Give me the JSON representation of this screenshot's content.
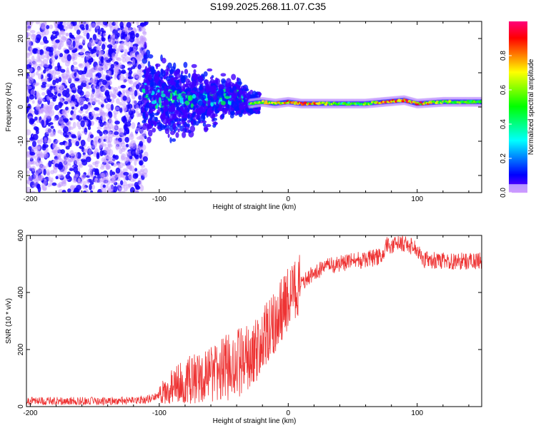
{
  "chart_data": [
    {
      "type": "heatmap",
      "title": "S199.2025.268.11.07.C35",
      "xlabel": "Height of straight line (km)",
      "ylabel": "Frequency (Hz)",
      "xlim": [
        -203,
        150
      ],
      "ylim": [
        -25,
        25
      ],
      "xticks": [
        -200,
        -100,
        0,
        100
      ],
      "yticks": [
        -20,
        -10,
        0,
        10,
        20
      ],
      "colorbar": {
        "label": "Normalized spectral amplitude",
        "range": [
          0,
          1
        ],
        "ticks": [
          "0.0",
          "0.2",
          "0.4",
          "0.6",
          "0.8"
        ]
      },
      "ridge": {
        "x": [
          -110,
          -90,
          -70,
          -50,
          -40,
          -30,
          -20,
          -10,
          0,
          10,
          20,
          40,
          60,
          75,
          90,
          100,
          120,
          150
        ],
        "freq_hz": [
          4,
          2,
          2,
          3,
          3,
          1,
          1.5,
          1,
          1.5,
          1,
          1,
          1,
          1,
          1.5,
          2,
          1,
          1.5,
          1.5
        ],
        "amplitude": [
          0.15,
          0.3,
          0.35,
          0.4,
          0.4,
          0.6,
          0.7,
          0.75,
          0.85,
          0.9,
          0.85,
          0.55,
          0.6,
          0.95,
          0.9,
          0.9,
          0.7,
          0.55
        ]
      },
      "noise_region_x": [
        -203,
        -110
      ]
    },
    {
      "type": "line",
      "xlabel": "Height of straight line (km)",
      "ylabel": "SNR (10 * v/v)",
      "xlim": [
        -203,
        150
      ],
      "ylim": [
        0,
        600
      ],
      "xticks": [
        -200,
        -100,
        0,
        100
      ],
      "yticks": [
        0,
        200,
        400,
        600
      ],
      "color": "#ee3333",
      "series": [
        {
          "name": "SNR",
          "x": [
            -203,
            -180,
            -150,
            -120,
            -110,
            -100,
            -90,
            -80,
            -70,
            -60,
            -50,
            -40,
            -30,
            -20,
            -10,
            0,
            10,
            20,
            30,
            40,
            50,
            60,
            70,
            75,
            76,
            90,
            100,
            105,
            120,
            150
          ],
          "y": [
            20,
            20,
            20,
            20,
            25,
            40,
            70,
            90,
            100,
            110,
            130,
            150,
            170,
            220,
            300,
            380,
            430,
            470,
            490,
            500,
            510,
            515,
            525,
            530,
            565,
            570,
            555,
            515,
            510,
            510
          ]
        }
      ]
    }
  ]
}
